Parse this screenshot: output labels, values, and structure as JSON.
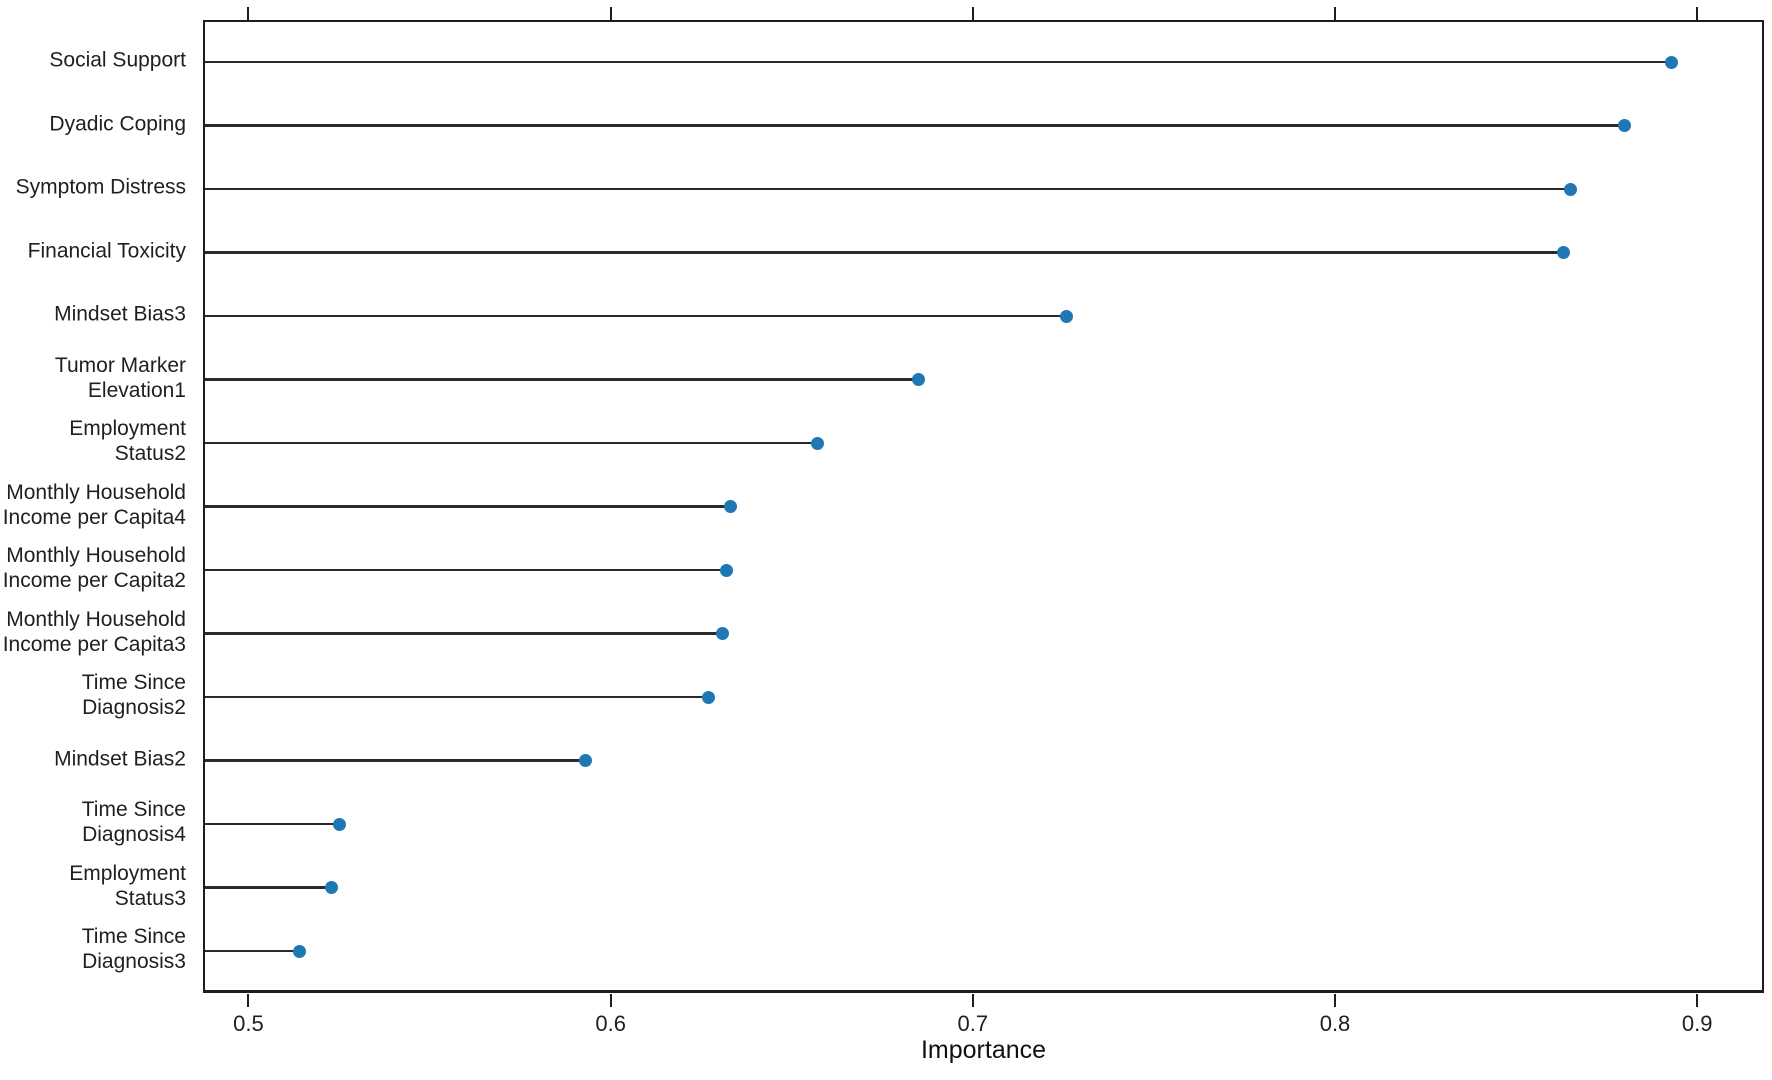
{
  "chart_data": {
    "type": "lollipop",
    "orientation": "horizontal",
    "title": "",
    "xlabel": "Importance",
    "ylabel": "",
    "xlim": [
      0.488,
      0.919
    ],
    "xticks": [
      0.5,
      0.6,
      0.7,
      0.8,
      0.9
    ],
    "xtick_labels": [
      "0.5",
      "0.6",
      "0.7",
      "0.8",
      "0.9"
    ],
    "grid": "off",
    "legend": "none",
    "marker_color": "#1f77b4",
    "stem_color": "#2a2a2a",
    "axis_color": "#1e1e1e",
    "categories": [
      "Social Support",
      "Dyadic Coping",
      "Symptom Distress",
      "Financial Toxicity",
      "Mindset Bias3",
      "Tumor Marker\nElevation1",
      "Employment\nStatus2",
      "Monthly Household\nIncome per Capita4",
      "Monthly Household\nIncome per Capita2",
      "Monthly Household\nIncome per Capita3",
      "Time Since\nDiagnosis2",
      "Mindset Bias2",
      "Time Since\nDiagnosis4",
      "Employment\nStatus3",
      "Time Since\nDiagnosis3"
    ],
    "values": [
      0.893,
      0.88,
      0.865,
      0.863,
      0.726,
      0.685,
      0.657,
      0.633,
      0.632,
      0.631,
      0.627,
      0.593,
      0.525,
      0.523,
      0.514
    ]
  }
}
